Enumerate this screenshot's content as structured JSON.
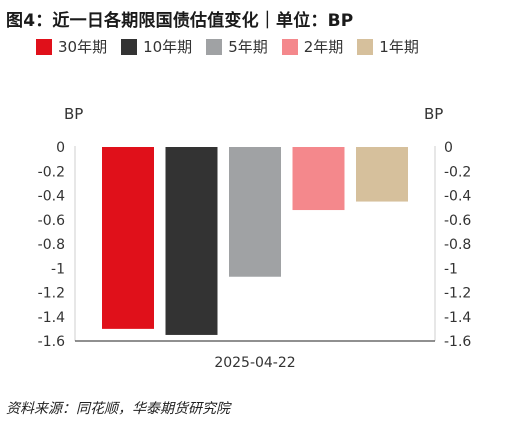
{
  "title": "图4：近一日各期限国债估值变化｜单位：BP",
  "source": "资料来源：同花顺，华泰期货研究院",
  "chart_data": {
    "type": "bar",
    "categories": [
      "2025-04-22"
    ],
    "series": [
      {
        "name": "30年期",
        "values": [
          -1.5
        ],
        "color": "#e0101a"
      },
      {
        "name": "10年期",
        "values": [
          -1.55
        ],
        "color": "#333333"
      },
      {
        "name": "5年期",
        "values": [
          -1.07
        ],
        "color": "#a0a2a4"
      },
      {
        "name": "2年期",
        "values": [
          -0.52
        ],
        "color": "#f4888c"
      },
      {
        "name": "1年期",
        "values": [
          -0.45
        ],
        "color": "#d6c09c"
      }
    ],
    "ylabel_left": "BP",
    "ylabel_right": "BP",
    "ylim": [
      -1.6,
      0
    ],
    "yticks": [
      "0",
      "-0.2",
      "-0.4",
      "-0.6",
      "-0.8",
      "-1",
      "-1.2",
      "-1.4",
      "-1.6"
    ],
    "grid": false,
    "legend_position": "top"
  }
}
